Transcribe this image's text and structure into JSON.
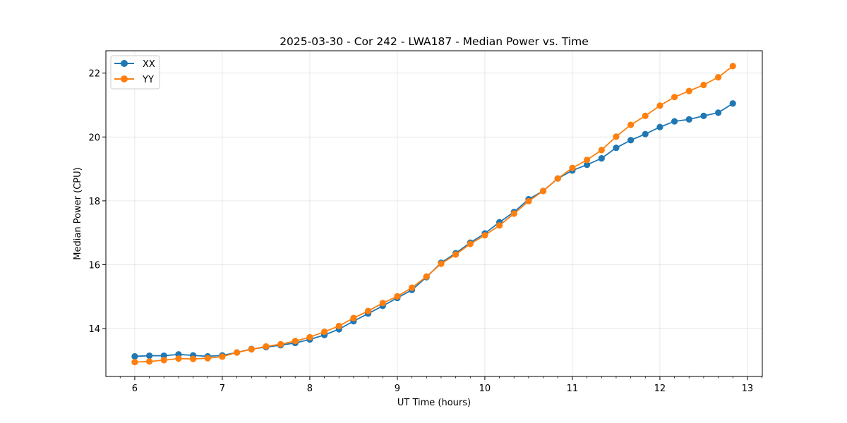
{
  "chart_data": {
    "type": "line",
    "title": "2025-03-30 - Cor 242 - LWA187 - Median Power vs. Time",
    "xlabel": "UT Time (hours)",
    "ylabel": "Median Power (CPU)",
    "xlim": [
      5.67,
      13.17
    ],
    "ylim": [
      12.5,
      22.7
    ],
    "xticks": [
      6,
      7,
      8,
      9,
      10,
      11,
      12,
      13
    ],
    "yticks": [
      14,
      16,
      18,
      20,
      22
    ],
    "grid": true,
    "legend_position": "top-left",
    "x": [
      6.0,
      6.1667,
      6.3333,
      6.5,
      6.6667,
      6.8333,
      7.0,
      7.1667,
      7.3333,
      7.5,
      7.6667,
      7.8333,
      8.0,
      8.1667,
      8.3333,
      8.5,
      8.6667,
      8.8333,
      9.0,
      9.1667,
      9.3333,
      9.5,
      9.6667,
      9.8333,
      10.0,
      10.1667,
      10.3333,
      10.5,
      10.6667,
      10.8333,
      11.0,
      11.1667,
      11.3333,
      11.5,
      11.6667,
      11.8333,
      12.0,
      12.1667,
      12.3333,
      12.5,
      12.6667,
      12.8333
    ],
    "series": [
      {
        "name": "XX",
        "color": "#1f77b4",
        "values": [
          13.13,
          13.15,
          13.15,
          13.19,
          13.16,
          13.13,
          13.16,
          13.25,
          13.36,
          13.42,
          13.48,
          13.55,
          13.66,
          13.8,
          13.98,
          14.23,
          14.47,
          14.71,
          14.96,
          15.21,
          15.61,
          16.06,
          16.36,
          16.69,
          16.98,
          17.33,
          17.65,
          18.05,
          18.31,
          18.7,
          18.95,
          19.13,
          19.33,
          19.66,
          19.9,
          20.09,
          20.31,
          20.49,
          20.55,
          20.66,
          20.76,
          21.05
        ]
      },
      {
        "name": "YY",
        "color": "#ff7f0e",
        "values": [
          12.95,
          12.97,
          13.01,
          13.06,
          13.05,
          13.07,
          13.12,
          13.25,
          13.35,
          13.44,
          13.51,
          13.61,
          13.73,
          13.9,
          14.08,
          14.33,
          14.55,
          14.8,
          15.01,
          15.28,
          15.63,
          16.03,
          16.32,
          16.65,
          16.92,
          17.23,
          17.6,
          17.99,
          18.31,
          18.7,
          19.03,
          19.28,
          19.59,
          20.01,
          20.38,
          20.66,
          20.98,
          21.25,
          21.44,
          21.63,
          21.87,
          22.22
        ]
      }
    ]
  }
}
